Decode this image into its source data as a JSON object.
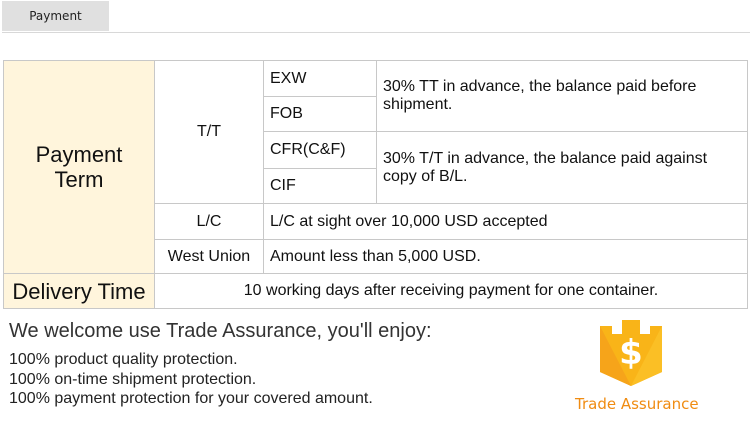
{
  "tab": {
    "label": "Payment"
  },
  "table": {
    "payment_term": "Payment Term",
    "tt": {
      "label": "T/T",
      "terms": [
        "EXW",
        "FOB",
        "CFR(C&F)",
        "CIF"
      ],
      "note1": "30% TT in advance, the balance paid before shipment.",
      "note2": "30% T/T in advance, the balance paid against copy of B/L."
    },
    "lc": {
      "label": "L/C",
      "value": "L/C at sight over 10,000 USD  accepted"
    },
    "wu": {
      "label": "West Union",
      "value": "Amount less than 5,000 USD."
    },
    "delivery": {
      "label": "Delivery Time",
      "value": "10 working days after receiving payment for one container."
    }
  },
  "assurance": {
    "heading": "We welcome use Trade Assurance, you'll enjoy:",
    "items": [
      "100% product quality protection.",
      "100% on-time shipment protection.",
      "100% payment protection for your covered amount."
    ],
    "logo_text": "Trade Assurance",
    "logo_color": "#f5a623"
  }
}
